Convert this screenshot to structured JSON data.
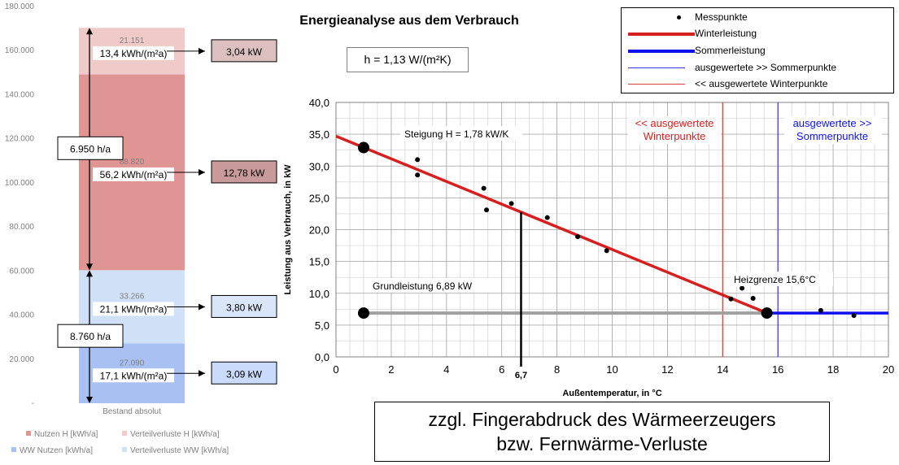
{
  "chart_data": [
    {
      "type": "bar",
      "title": "",
      "categories": [
        "Bestand absolut"
      ],
      "series": [
        {
          "name": "Nutzen H [kWh/a]",
          "value": 88820,
          "color": "#e09595"
        },
        {
          "name": "Verteilverluste  H [kWh/a]",
          "value": 21151,
          "color": "#f0c9c9"
        },
        {
          "name": "WW Nutzen [kWh/a]",
          "value": 27090,
          "color": "#a9c1f2"
        },
        {
          "name": "Verteilverluste  WW [kWh/a]",
          "value": 33266,
          "color": "#cfe0f7"
        }
      ],
      "stack_order": [
        "WW Nutzen [kWh/a]",
        "Verteilverluste  WW [kWh/a]",
        "Nutzen H [kWh/a]",
        "Verteilverluste  H [kWh/a]"
      ],
      "ylim": [
        0,
        180000
      ],
      "yticks": [
        "-",
        "20.000",
        "40.000",
        "60.000",
        "80.000",
        "100.000",
        "120.000",
        "140.000",
        "160.000",
        "180.000"
      ],
      "segment_value_labels": [
        "27.090",
        "33.266",
        "88.820",
        "21.151"
      ],
      "segment_specific_labels": [
        "17,1 kWh/(m²a)",
        "21,1 kWh/(m²a)",
        "56,2 kWh/(m²a)",
        "13,4 kWh/(m²a)"
      ],
      "power_labels": [
        "3,09 kW",
        "3,80 kW",
        "12,78 kW",
        "3,04 kW"
      ],
      "hours_labels": [
        {
          "text": "8.760 h/a",
          "from": 0,
          "to": 60356
        },
        {
          "text": "6.950 h/a",
          "from": 60356,
          "to": 170327
        }
      ]
    },
    {
      "type": "scatter",
      "title": "Energieanalyse aus dem Verbrauch",
      "xlabel": "Außentemperatur, in °C",
      "ylabel": "Leistung aus Verbrauch, in kW",
      "xlim": [
        0,
        20
      ],
      "ylim": [
        0,
        40
      ],
      "xticks": [
        "0",
        "2",
        "4",
        "6",
        "8",
        "10",
        "12",
        "14",
        "16",
        "18",
        "20"
      ],
      "yticks": [
        "0,0",
        "5,0",
        "10,0",
        "15,0",
        "20,0",
        "25,0",
        "30,0",
        "35,0",
        "40,0"
      ],
      "grid": true,
      "series": [
        {
          "name": "Messpunkte",
          "points": [
            [
              2.95,
              31.0
            ],
            [
              2.95,
              28.6
            ],
            [
              5.35,
              26.5
            ],
            [
              5.45,
              23.1
            ],
            [
              6.35,
              24.1
            ],
            [
              7.65,
              21.9
            ],
            [
              8.75,
              18.9
            ],
            [
              9.8,
              16.7
            ],
            [
              14.3,
              9.1
            ],
            [
              14.7,
              10.8
            ],
            [
              15.1,
              9.2
            ],
            [
              17.55,
              7.3
            ],
            [
              18.75,
              6.5
            ]
          ]
        },
        {
          "name": "Winterleistung",
          "color": "#d62020",
          "line": [
            [
              0,
              34.7
            ],
            [
              15.6,
              6.89
            ]
          ]
        },
        {
          "name": "Sommerleistung",
          "color": "#1010ee",
          "line": [
            [
              15.6,
              6.89
            ],
            [
              20,
              6.89
            ]
          ]
        },
        {
          "name": "ausgewertete >> Sommerpunkte",
          "color": "#3333dd",
          "vline_x": 16
        },
        {
          "name": "<< ausgewertete Winterpunkte",
          "color": "#d04040",
          "vline_x": 14
        }
      ],
      "baseline": {
        "y": 6.89,
        "color": "#a0a0a0"
      },
      "key_points": [
        [
          1.0,
          32.9
        ],
        [
          1.0,
          6.89
        ],
        [
          15.6,
          6.89
        ]
      ],
      "marker_x": 6.7,
      "marker_label": "6,7",
      "annotations": {
        "slope": "Steigung H = 1,78 kW/K",
        "base": "Grundleistung  6,89 kW",
        "heat_limit": "Heizgrenze  15,6°C",
        "winter_region": [
          "<< ausgewertete",
          "Winterpunkte"
        ],
        "summer_region": [
          "ausgewertete >>",
          "Sommerpunkte"
        ]
      },
      "h_value": "h = 1,13 W/(m²K)",
      "legend_position": "top-right"
    }
  ],
  "note": [
    "zzgl. Fingerabdruck des Wärmeerzeugers",
    "bzw. Fernwärme-Verluste"
  ]
}
